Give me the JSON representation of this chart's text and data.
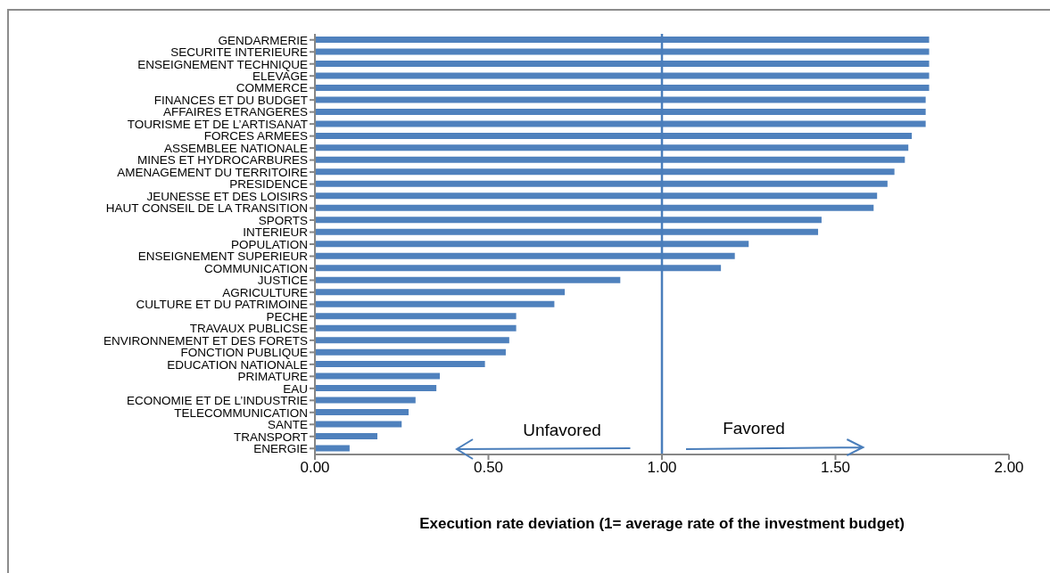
{
  "chart_data": {
    "type": "bar",
    "orientation": "horizontal",
    "xlabel": "Execution rate deviation (1= average rate of the investment budget)",
    "categories": [
      "GENDARMERIE",
      "SECURITE INTERIEURE",
      "ENSEIGNEMENT TECHNIQUE",
      "ELEVAGE",
      "COMMERCE",
      "FINANCES ET DU BUDGET",
      "AFFAIRES ETRANGERES",
      "TOURISME ET DE L’ARTISANAT",
      "FORCES ARMEES",
      "ASSEMBLEE NATIONALE",
      "MINES ET HYDROCARBURES",
      "AMENAGEMENT DU TERRITOIRE",
      "PRESIDENCE",
      "JEUNESSE ET DES LOISIRS",
      "HAUT CONSEIL DE LA TRANSITION",
      "SPORTS",
      "INTERIEUR",
      "POPULATION",
      "ENSEIGNEMENT SUPERIEUR",
      "COMMUNICATION",
      "JUSTICE",
      "AGRICULTURE",
      "CULTURE ET DU PATRIMOINE",
      "PECHE",
      "TRAVAUX PUBLICSE",
      "ENVIRONNEMENT ET DES FORETS",
      "FONCTION PUBLIQUE",
      "EDUCATION NATIONALE",
      "PRIMATURE",
      "EAU",
      "ECONOMIE ET DE L’INDUSTRIE",
      "TELECOMMUNICATION",
      "SANTE",
      "TRANSPORT",
      "ENERGIE"
    ],
    "values": [
      1.77,
      1.77,
      1.77,
      1.77,
      1.77,
      1.76,
      1.76,
      1.76,
      1.72,
      1.71,
      1.7,
      1.67,
      1.65,
      1.62,
      1.61,
      1.46,
      1.45,
      1.25,
      1.21,
      1.17,
      0.88,
      0.72,
      0.69,
      0.58,
      0.58,
      0.56,
      0.55,
      0.49,
      0.36,
      0.35,
      0.29,
      0.27,
      0.25,
      0.18,
      0.1
    ],
    "color": "#4f81bd",
    "xlim": [
      0,
      2
    ],
    "xticks": [
      {
        "value": 0,
        "label": "0.00"
      },
      {
        "value": 0.5,
        "label": "0.50"
      },
      {
        "value": 1,
        "label": "1.00"
      },
      {
        "value": 1.5,
        "label": "1.50"
      },
      {
        "value": 2,
        "label": "2.00"
      }
    ],
    "ref_lines": [
      {
        "axis": "x",
        "value": 1,
        "color": "#4a7ebb"
      }
    ],
    "annotations": [
      "Unfavored",
      "Favored"
    ],
    "grid": false,
    "legend": false
  }
}
